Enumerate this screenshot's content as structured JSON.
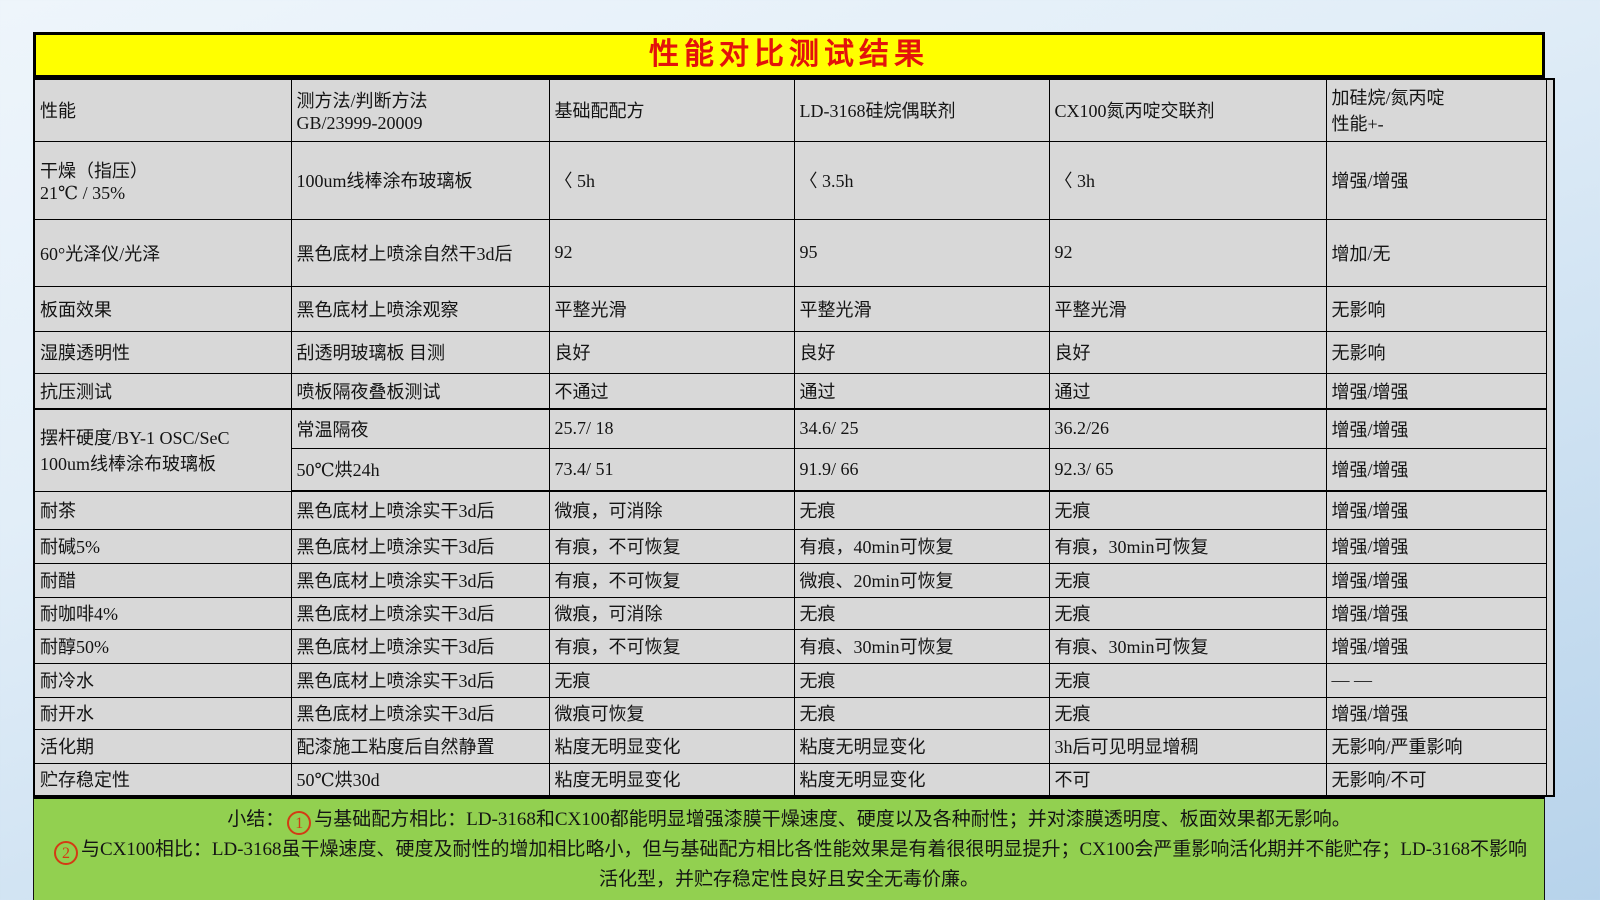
{
  "title": "性能对比测试结果",
  "colors": {
    "title_bg": "#ffff00",
    "title_text": "#e3120b",
    "cell_bg": "#d8d8d8",
    "summary_bg": "#92d050",
    "badge_red": "#d33b14"
  },
  "table": {
    "headers": [
      "性能",
      "测方法/判断方法\nGB/23999-20009",
      "基础配配方",
      "LD-3168硅烷偶联剂",
      "CX100氮丙啶交联剂",
      "加硅烷/氮丙啶\n性能+-"
    ],
    "rows": [
      {
        "label": "干燥（指压）\n21℃ / 35%",
        "method": "100um线棒涂布玻璃板",
        "base": "〈 5h",
        "ld": "〈 3.5h",
        "cx": "〈 3h",
        "delta": "增强/增强"
      },
      {
        "label": "60°光泽仪/光泽",
        "method": "黑色底材上喷涂自然干3d后",
        "base": "92",
        "ld": "95",
        "cx": "92",
        "delta": "增加/无"
      },
      {
        "label": "板面效果",
        "method": "黑色底材上喷涂观察",
        "base": "平整光滑",
        "ld": "平整光滑",
        "cx": "平整光滑",
        "delta": "无影响"
      },
      {
        "label": "湿膜透明性",
        "method": "刮透明玻璃板 目测",
        "base": "良好",
        "ld": "良好",
        "cx": "良好",
        "delta": "无影响"
      },
      {
        "label": "抗压测试",
        "method": "喷板隔夜叠板测试",
        "base": "不通过",
        "ld": "通过",
        "cx": "通过",
        "delta": "增强/增强"
      },
      {
        "label": "摆杆硬度/BY-1 OSC/SeC\n100um线棒涂布玻璃板",
        "method": "常温隔夜",
        "base": "25.7/ 18",
        "ld": "34.6/ 25",
        "cx": "36.2/26",
        "delta": "增强/增强"
      },
      {
        "method": "50℃烘24h",
        "base": "73.4/  51",
        "ld": "91.9/ 66",
        "cx": "92.3/ 65",
        "delta": "增强/增强"
      },
      {
        "label": "耐茶",
        "method": "黑色底材上喷涂实干3d后",
        "base": "微痕，可消除",
        "ld": "无痕",
        "cx": "无痕",
        "delta": "增强/增强"
      },
      {
        "label": "耐碱5%",
        "method": "黑色底材上喷涂实干3d后",
        "base": "有痕，不可恢复",
        "ld": "有痕，40min可恢复",
        "cx": "有痕，30min可恢复",
        "delta": "增强/增强"
      },
      {
        "label": "耐醋",
        "method": "黑色底材上喷涂实干3d后",
        "base": "有痕，不可恢复",
        "ld": "微痕、20min可恢复",
        "cx": "无痕",
        "delta": "增强/增强"
      },
      {
        "label": "耐咖啡4%",
        "method": "黑色底材上喷涂实干3d后",
        "base": "微痕，可消除",
        "ld": "无痕",
        "cx": "无痕",
        "delta": "增强/增强"
      },
      {
        "label": "耐醇50%",
        "method": "黑色底材上喷涂实干3d后",
        "base": "有痕，不可恢复",
        "ld": "有痕、30min可恢复",
        "cx": "有痕、30min可恢复",
        "delta": "增强/增强"
      },
      {
        "label": "耐冷水",
        "method": "黑色底材上喷涂实干3d后",
        "base": "无痕",
        "ld": "无痕",
        "cx": "无痕",
        "delta": "— —"
      },
      {
        "label": "耐开水",
        "method": "黑色底材上喷涂实干3d后",
        "base": "微痕可恢复",
        "ld": "无痕",
        "cx": "无痕",
        "delta": "增强/增强"
      },
      {
        "label": "活化期",
        "method": "配漆施工粘度后自然静置",
        "base": "粘度无明显变化",
        "ld": "粘度无明显变化",
        "cx": "3h后可见明显增稠",
        "delta": "无影响/严重影响"
      },
      {
        "label": "贮存稳定性",
        "method": "50℃烘30d",
        "base": "粘度无明显变化",
        "ld": "粘度无明显变化",
        "cx": "不可",
        "delta": "无影响/不可"
      }
    ]
  },
  "summary": {
    "intro": "小结：",
    "badge1": "1",
    "point1": "与基础配方相比：LD-3168和CX100都能明显增强漆膜干燥速度、硬度以及各种耐性；并对漆膜透明度、板面效果都无影响。",
    "badge2": "2",
    "point2": "与CX100相比：LD-3168虽干燥速度、硬度及耐性的增加相比略小，但与基础配方相比各性能效果是有着很很明显提升；CX100会严重影响活化期并不能贮存；LD-3168不影响活化型，并贮存稳定性良好且安全无毒价廉。"
  }
}
